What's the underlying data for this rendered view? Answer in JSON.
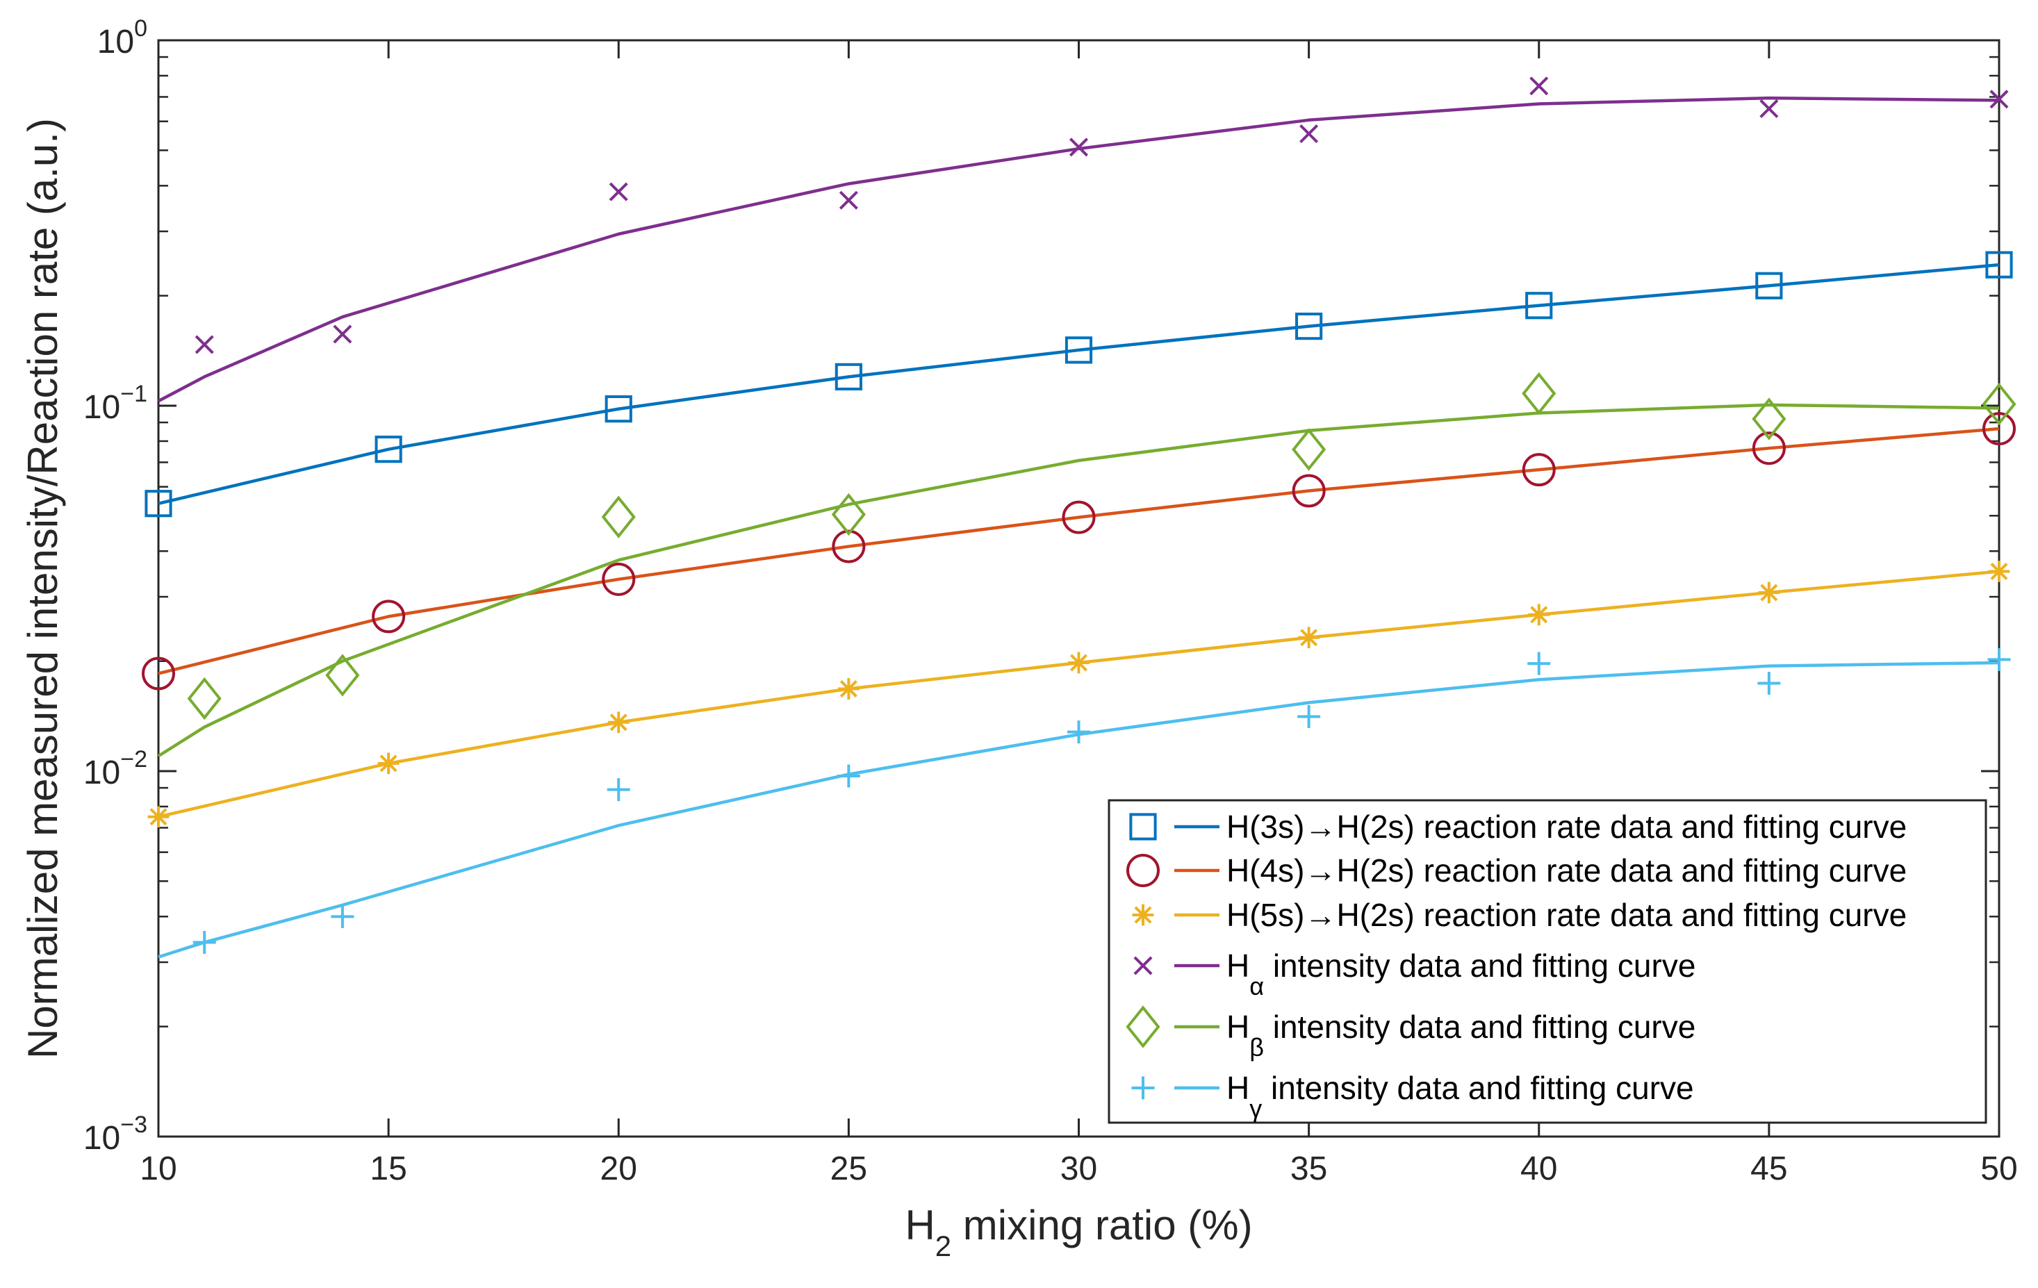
{
  "chart_data": {
    "type": "line",
    "xlabel": {
      "base": "H",
      "sub": "2",
      "rest": " mixing ratio (%)"
    },
    "ylabel": "Normalized measured intensity/Reaction rate (a.u.)",
    "xlim": [
      10,
      50
    ],
    "ylim": [
      0.001,
      1
    ],
    "yscale": "log",
    "x_ticks": [
      10,
      15,
      20,
      25,
      30,
      35,
      40,
      45,
      50
    ],
    "y_ticks": [
      {
        "value": 1,
        "base": "10",
        "exp": "0"
      },
      {
        "value": 0.1,
        "base": "10",
        "exp": "−1"
      },
      {
        "value": 0.01,
        "base": "10",
        "exp": "−2"
      },
      {
        "value": 0.001,
        "base": "10",
        "exp": "−3"
      }
    ],
    "legend_position": "bottom-right",
    "series": [
      {
        "name": "H(3s)→H(2s) reaction rate data and fitting curve",
        "label": "H(3s)→H(2s) reaction rate data and fitting curve",
        "color": "#0072BD",
        "marker": "square",
        "data_x": [
          10,
          15,
          20,
          25,
          30,
          35,
          40,
          45,
          50
        ],
        "data_y": [
          0.054,
          0.076,
          0.098,
          0.12,
          0.142,
          0.165,
          0.188,
          0.213,
          0.243
        ],
        "fit_x": [
          10,
          15,
          20,
          25,
          30,
          35,
          40,
          45,
          50
        ],
        "fit_y": [
          0.054,
          0.076,
          0.098,
          0.12,
          0.142,
          0.165,
          0.188,
          0.213,
          0.243
        ]
      },
      {
        "name": "H(4s)→H(2s) reaction rate data and fitting curve",
        "label": "H(4s)→H(2s) reaction rate data and fitting curve",
        "color": "#D95319",
        "marker_color": "#A2142F",
        "marker": "circle",
        "data_x": [
          10,
          15,
          20,
          25,
          30,
          35,
          40,
          45,
          50
        ],
        "data_y": [
          0.0185,
          0.0265,
          0.0335,
          0.0412,
          0.0495,
          0.0585,
          0.0668,
          0.0765,
          0.0865
        ],
        "fit_x": [
          10,
          15,
          20,
          25,
          30,
          35,
          40,
          45,
          50
        ],
        "fit_y": [
          0.0185,
          0.0265,
          0.0335,
          0.0412,
          0.0495,
          0.0585,
          0.0668,
          0.0765,
          0.0865
        ]
      },
      {
        "name": "H(5s)→H(2s) reaction rate data and fitting curve",
        "label": "H(5s)→H(2s) reaction rate data and fitting curve",
        "color": "#EDB120",
        "marker": "asterisk",
        "data_x": [
          10,
          15,
          20,
          25,
          30,
          35,
          40,
          45,
          50
        ],
        "data_y": [
          0.0075,
          0.0105,
          0.0136,
          0.0168,
          0.0198,
          0.0232,
          0.0268,
          0.0308,
          0.0352
        ],
        "fit_x": [
          10,
          15,
          20,
          25,
          30,
          35,
          40,
          45,
          50
        ],
        "fit_y": [
          0.0075,
          0.0105,
          0.0136,
          0.0168,
          0.0198,
          0.0232,
          0.0268,
          0.0308,
          0.0352
        ]
      },
      {
        "name": "Hα intensity data and fitting curve",
        "label": {
          "base": "H",
          "sub": "α",
          "rest": " intensity data and fitting curve"
        },
        "color": "#7E2F8E",
        "marker": "x",
        "data_x": [
          11,
          14,
          20,
          25,
          30,
          35,
          40,
          45,
          50
        ],
        "data_y": [
          0.147,
          0.157,
          0.385,
          0.365,
          0.51,
          0.555,
          0.75,
          0.65,
          0.69
        ],
        "fit_x": [
          10,
          11,
          14,
          20,
          25,
          30,
          35,
          40,
          45,
          50
        ],
        "fit_y": [
          0.103,
          0.12,
          0.175,
          0.295,
          0.405,
          0.505,
          0.605,
          0.67,
          0.695,
          0.685
        ]
      },
      {
        "name": "Hβ intensity data and fitting curve",
        "label": {
          "base": "H",
          "sub": "β",
          "rest": " intensity data and fitting curve"
        },
        "color": "#77AC30",
        "marker": "diamond",
        "data_x": [
          11,
          14,
          20,
          25,
          35,
          40,
          45,
          50
        ],
        "data_y": [
          0.0158,
          0.0183,
          0.0496,
          0.0504,
          0.0759,
          0.108,
          0.092,
          0.101
        ],
        "fit_x": [
          10,
          11,
          14,
          20,
          25,
          30,
          35,
          40,
          45,
          50
        ],
        "fit_y": [
          0.011,
          0.0132,
          0.02,
          0.0378,
          0.0537,
          0.0708,
          0.0855,
          0.0955,
          0.1005,
          0.0985
        ]
      },
      {
        "name": "Hγ intensity data and fitting curve",
        "label": {
          "base": "H",
          "sub": "γ",
          "rest": " intensity data and fitting curve"
        },
        "color": "#4DBEEE",
        "marker": "plus",
        "data_x": [
          11,
          14,
          20,
          25,
          30,
          35,
          40,
          45,
          50
        ],
        "data_y": [
          0.0034,
          0.004,
          0.0089,
          0.0097,
          0.0128,
          0.0141,
          0.0197,
          0.0174,
          0.0202
        ],
        "fit_x": [
          10,
          11,
          14,
          20,
          25,
          30,
          35,
          40,
          45,
          50
        ],
        "fit_y": [
          0.0031,
          0.0034,
          0.0043,
          0.0071,
          0.0098,
          0.0126,
          0.0154,
          0.0178,
          0.0194,
          0.0198
        ]
      }
    ]
  }
}
